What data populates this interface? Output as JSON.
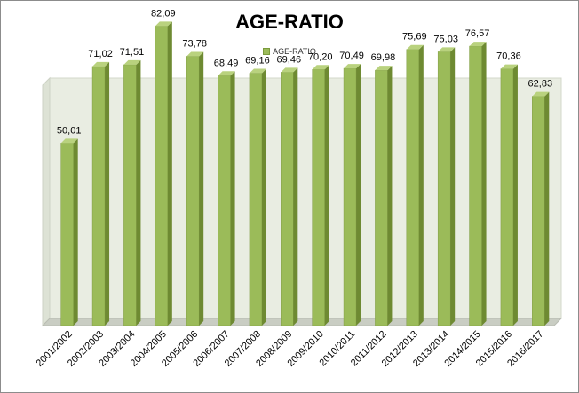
{
  "chart_data": {
    "type": "bar",
    "title": "AGE-RATIO",
    "legend": [
      "AGE-RATIO"
    ],
    "legend_position": "top",
    "categories": [
      "2001/2002",
      "2002/2003",
      "2003/2004",
      "2004/2005",
      "2005/2006",
      "2006/2007",
      "2007/2008",
      "2008/2009",
      "2009/2010",
      "2010/2011",
      "2011/2012",
      "2012/2013",
      "2013/2014",
      "2014/2015",
      "2015/2016",
      "2016/2017"
    ],
    "series": [
      {
        "name": "AGE-RATIO",
        "values": [
          50.01,
          71.02,
          71.51,
          82.09,
          73.78,
          68.49,
          69.16,
          69.46,
          70.2,
          70.49,
          69.98,
          75.69,
          75.03,
          76.57,
          70.36,
          62.83
        ],
        "labels": [
          "50,01",
          "71,02",
          "71,51",
          "82,09",
          "73,78",
          "68,49",
          "69,16",
          "69,46",
          "70,20",
          "70,49",
          "69,98",
          "75,69",
          "75,03",
          "76,57",
          "70,36",
          "62,83"
        ]
      }
    ],
    "ylim": [
      0,
      90
    ],
    "grid": false,
    "colors": {
      "bar_front": "#9bbb59",
      "bar_side": "#6e8a32",
      "bar_top": "#b9d27e",
      "wall": "#e9ede2",
      "floor": "#c9cdc3"
    }
  }
}
